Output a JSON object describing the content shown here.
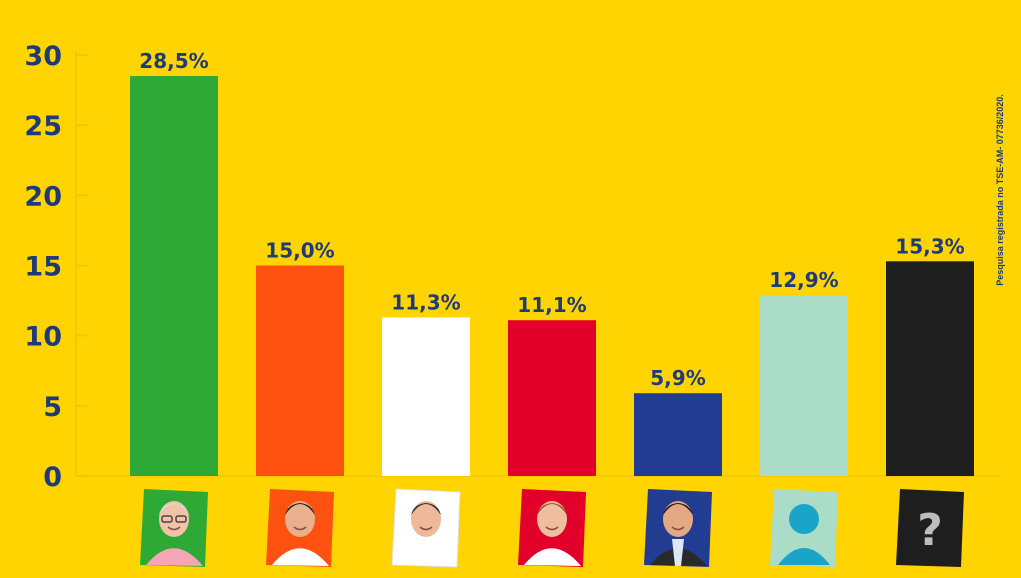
{
  "chart_data": {
    "type": "bar",
    "title": "",
    "xlabel": "",
    "ylabel": "",
    "ylim": [
      0,
      30
    ],
    "yticks": [
      "0",
      "5",
      "10",
      "15",
      "20",
      "25",
      "30"
    ],
    "categories": [
      "",
      "",
      "",
      "",
      "",
      "",
      ""
    ],
    "values": [
      28.5,
      15.0,
      11.3,
      11.1,
      5.9,
      12.9,
      15.3
    ],
    "data_labels": [
      "28,5%",
      "15,0%",
      "11,3%",
      "11,1%",
      "5,9%",
      "12,9%",
      "15,3%"
    ],
    "colors": [
      "#2EA935",
      "#FF5210",
      "#FFFFFF",
      "#E2002B",
      "#213C90",
      "#AADCC8",
      "#1E1E1E"
    ],
    "grid": false,
    "legend": "none"
  },
  "icons": [
    "candidate-photo-green",
    "candidate-photo-orange",
    "candidate-photo-white",
    "candidate-photo-red",
    "candidate-photo-blue",
    "undisclosed-person-icon",
    "question-mark-icon"
  ],
  "question_glyph": "?",
  "note": "Pesquisa registrada no TSE-AM- 07736/2020."
}
